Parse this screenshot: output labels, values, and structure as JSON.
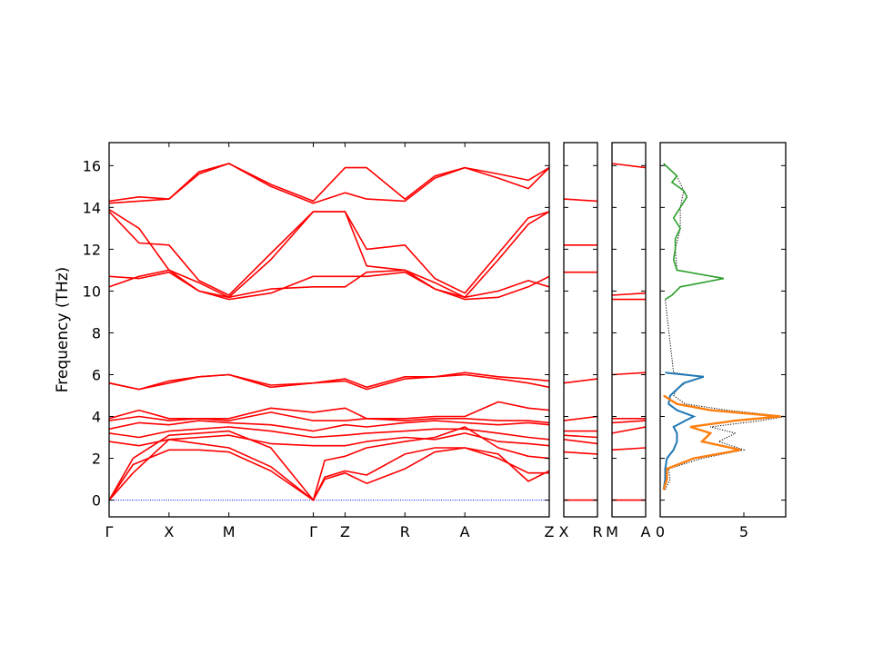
{
  "chart_data": {
    "type": "line",
    "ylabel": "Frequency (THz)",
    "ylim": [
      -0.8,
      17.1
    ],
    "yticks": [
      0,
      2,
      4,
      6,
      8,
      10,
      12,
      14,
      16
    ],
    "colors": {
      "bands": "#ff0000",
      "zero_line": "#0000ff",
      "dos_total": "#000000",
      "dos_blue": "#1f77b4",
      "dos_orange": "#ff7f0e",
      "dos_green": "#2ca02c"
    },
    "band_segments": [
      {
        "path": [
          "Γ",
          "X",
          "M",
          "Γ",
          "Z",
          "R",
          "A",
          "Z"
        ],
        "distance": [
          0,
          1,
          2,
          3.41,
          3.94,
          4.94,
          5.94,
          7.35
        ],
        "xlim": [
          0,
          7.35
        ],
        "bands": [
          {
            "name": "acoustic-1",
            "x": [
              0,
              0.4,
              1,
              1.5,
              2,
              2.7,
              3.41,
              3.6,
              3.94,
              4.3,
              4.94,
              5.44,
              5.94,
              6.5,
              7.0,
              7.35
            ],
            "y": [
              0,
              1.7,
              2.4,
              2.4,
              2.3,
              1.4,
              0,
              1.0,
              1.3,
              0.8,
              1.5,
              2.3,
              2.5,
              2.0,
              1.3,
              1.3
            ]
          },
          {
            "name": "acoustic-2",
            "x": [
              0,
              0.4,
              1,
              1.5,
              2,
              2.7,
              3.41,
              3.6,
              3.94,
              4.3,
              4.94,
              5.44,
              5.94,
              6.5,
              7.0,
              7.35
            ],
            "y": [
              0,
              1.3,
              2.9,
              2.7,
              2.5,
              1.6,
              0,
              1.1,
              1.4,
              1.2,
              2.2,
              2.5,
              2.5,
              2.2,
              0.9,
              1.4
            ]
          },
          {
            "name": "acoustic-3",
            "x": [
              0,
              0.4,
              1,
              1.5,
              2,
              2.7,
              3.41,
              3.6,
              3.94,
              4.3,
              4.94,
              5.44,
              5.94,
              6.5,
              7.0,
              7.35
            ],
            "y": [
              0,
              2.0,
              3.1,
              3.2,
              3.3,
              2.5,
              0,
              1.9,
              2.1,
              2.5,
              2.8,
              3.0,
              3.5,
              2.5,
              2.1,
              2.0
            ]
          },
          {
            "name": "optical-1",
            "x": [
              0,
              0.5,
              1,
              1.5,
              2,
              2.7,
              3.41,
              3.94,
              4.3,
              4.94,
              5.44,
              5.94,
              6.5,
              7.0,
              7.35
            ],
            "y": [
              2.8,
              2.6,
              2.9,
              3.0,
              3.1,
              2.7,
              2.6,
              2.6,
              2.8,
              3.0,
              2.9,
              3.2,
              2.8,
              2.7,
              2.6
            ]
          },
          {
            "name": "optical-2",
            "x": [
              0,
              0.5,
              1,
              1.5,
              2,
              2.7,
              3.41,
              3.94,
              4.3,
              4.94,
              5.44,
              5.94,
              6.5,
              7.0,
              7.35
            ],
            "y": [
              3.2,
              3.0,
              3.3,
              3.4,
              3.5,
              3.3,
              3.0,
              3.1,
              3.2,
              3.3,
              3.4,
              3.4,
              3.2,
              3.0,
              2.9
            ]
          },
          {
            "name": "optical-3",
            "x": [
              0,
              0.5,
              1,
              1.5,
              2,
              2.7,
              3.41,
              3.94,
              4.3,
              4.94,
              5.44,
              5.94,
              6.5,
              7.0,
              7.35
            ],
            "y": [
              3.4,
              3.7,
              3.6,
              3.8,
              3.7,
              3.6,
              3.3,
              3.6,
              3.5,
              3.7,
              3.8,
              3.7,
              3.6,
              3.7,
              3.6
            ]
          },
          {
            "name": "optical-4",
            "x": [
              0,
              0.5,
              1,
              1.5,
              2,
              2.7,
              3.41,
              3.94,
              4.3,
              4.94,
              5.44,
              5.94,
              6.5,
              7.0,
              7.35
            ],
            "y": [
              3.8,
              4.0,
              3.8,
              3.9,
              3.8,
              4.2,
              3.8,
              3.8,
              3.9,
              3.8,
              3.9,
              3.9,
              3.8,
              3.8,
              3.7
            ]
          },
          {
            "name": "optical-5",
            "x": [
              0,
              0.5,
              1,
              1.5,
              2,
              2.7,
              3.41,
              3.94,
              4.3,
              4.94,
              5.44,
              5.94,
              6.5,
              7.0,
              7.35
            ],
            "y": [
              3.9,
              4.3,
              3.9,
              3.9,
              3.9,
              4.4,
              4.2,
              4.4,
              3.9,
              3.9,
              4.0,
              4.0,
              4.7,
              4.4,
              4.3
            ]
          },
          {
            "name": "optical-6",
            "x": [
              0,
              0.5,
              1,
              1.5,
              2,
              2.7,
              3.41,
              3.94,
              4.3,
              4.94,
              5.44,
              5.94,
              6.5,
              7.0,
              7.35
            ],
            "y": [
              5.6,
              5.3,
              5.6,
              5.9,
              6.0,
              5.4,
              5.6,
              5.7,
              5.3,
              5.8,
              5.9,
              6.0,
              5.8,
              5.6,
              5.4
            ]
          },
          {
            "name": "optical-7",
            "x": [
              0,
              0.5,
              1,
              1.5,
              2,
              2.7,
              3.41,
              3.94,
              4.3,
              4.94,
              5.44,
              5.94,
              6.5,
              7.0,
              7.35
            ],
            "y": [
              5.6,
              5.3,
              5.7,
              5.9,
              6.0,
              5.5,
              5.6,
              5.8,
              5.4,
              5.9,
              5.9,
              6.1,
              5.9,
              5.8,
              5.7
            ]
          },
          {
            "name": "high-1",
            "x": [
              0,
              0.5,
              1,
              1.5,
              2,
              2.7,
              3.41,
              3.94,
              4.3,
              4.94,
              5.44,
              5.94,
              6.5,
              7.0,
              7.35
            ],
            "y": [
              10.2,
              10.7,
              11.0,
              10.4,
              9.7,
              10.1,
              10.2,
              10.2,
              10.9,
              11.0,
              10.4,
              9.7,
              10.0,
              10.5,
              10.2
            ]
          },
          {
            "name": "high-2",
            "x": [
              0,
              0.5,
              1,
              1.5,
              2,
              2.7,
              3.41,
              3.94,
              4.3,
              4.94,
              5.44,
              5.94,
              6.5,
              7.0,
              7.35
            ],
            "y": [
              10.7,
              10.6,
              10.9,
              10.0,
              9.6,
              9.9,
              10.7,
              10.7,
              10.7,
              10.9,
              10.1,
              9.6,
              9.7,
              10.2,
              10.7
            ]
          },
          {
            "name": "high-3",
            "x": [
              0,
              0.5,
              1,
              1.5,
              2,
              2.7,
              3.41,
              3.94,
              4.3,
              4.94,
              5.44,
              5.94,
              6.5,
              7.0,
              7.35
            ],
            "y": [
              13.8,
              12.3,
              12.2,
              10.5,
              9.8,
              11.8,
              13.8,
              13.8,
              12.0,
              12.2,
              10.6,
              9.9,
              11.8,
              13.5,
              13.8
            ]
          },
          {
            "name": "high-4",
            "x": [
              0,
              0.5,
              1,
              1.5,
              2,
              2.7,
              3.41,
              3.94,
              4.3,
              4.94,
              5.44,
              5.94,
              6.5,
              7.0,
              7.35
            ],
            "y": [
              13.9,
              13.0,
              11.0,
              10.0,
              9.7,
              11.5,
              13.8,
              13.8,
              11.2,
              11.0,
              10.1,
              9.7,
              11.5,
              13.2,
              13.8
            ]
          },
          {
            "name": "high-5",
            "x": [
              0,
              0.5,
              1,
              1.5,
              2,
              2.7,
              3.41,
              3.94,
              4.3,
              4.94,
              5.44,
              5.94,
              6.5,
              7.0,
              7.35
            ],
            "y": [
              14.2,
              14.3,
              14.4,
              15.6,
              16.1,
              15.0,
              14.2,
              14.7,
              14.4,
              14.3,
              15.4,
              15.9,
              15.4,
              14.9,
              15.9
            ]
          },
          {
            "name": "high-6",
            "x": [
              0,
              0.5,
              1,
              1.5,
              2,
              2.7,
              3.41,
              3.94,
              4.3,
              4.94,
              5.44,
              5.94,
              6.5,
              7.0,
              7.35
            ],
            "y": [
              14.3,
              14.5,
              14.4,
              15.7,
              16.1,
              15.1,
              14.3,
              15.9,
              15.9,
              14.4,
              15.5,
              15.9,
              15.6,
              15.3,
              15.9
            ]
          }
        ]
      },
      {
        "path": [
          "X",
          "R"
        ],
        "xlim": [
          0,
          1
        ],
        "bands": [
          {
            "name": "b1",
            "x": [
              0,
              1
            ],
            "y": [
              0,
              0
            ]
          },
          {
            "name": "b2",
            "x": [
              0,
              1
            ],
            "y": [
              2.3,
              2.2
            ]
          },
          {
            "name": "b3",
            "x": [
              0,
              1
            ],
            "y": [
              2.9,
              2.7
            ]
          },
          {
            "name": "b4",
            "x": [
              0,
              1
            ],
            "y": [
              3.1,
              3.0
            ]
          },
          {
            "name": "b5",
            "x": [
              0,
              1
            ],
            "y": [
              3.3,
              3.3
            ]
          },
          {
            "name": "b6",
            "x": [
              0,
              1
            ],
            "y": [
              3.8,
              4.0
            ]
          },
          {
            "name": "b7",
            "x": [
              0,
              1
            ],
            "y": [
              5.6,
              5.8
            ]
          },
          {
            "name": "b8",
            "x": [
              0,
              1
            ],
            "y": [
              10.9,
              10.9
            ]
          },
          {
            "name": "b9",
            "x": [
              0,
              1
            ],
            "y": [
              12.2,
              12.2
            ]
          },
          {
            "name": "b10",
            "x": [
              0,
              1
            ],
            "y": [
              14.4,
              14.3
            ]
          }
        ]
      },
      {
        "path": [
          "M",
          "A"
        ],
        "xlim": [
          0,
          1
        ],
        "bands": [
          {
            "name": "b1",
            "x": [
              0,
              1
            ],
            "y": [
              0,
              0
            ]
          },
          {
            "name": "b2",
            "x": [
              0,
              1
            ],
            "y": [
              2.4,
              2.5
            ]
          },
          {
            "name": "b3",
            "x": [
              0,
              1
            ],
            "y": [
              3.2,
              3.5
            ]
          },
          {
            "name": "b4",
            "x": [
              0,
              1
            ],
            "y": [
              3.7,
              3.8
            ]
          },
          {
            "name": "b5",
            "x": [
              0,
              1
            ],
            "y": [
              3.9,
              3.9
            ]
          },
          {
            "name": "b6",
            "x": [
              0,
              1
            ],
            "y": [
              6.0,
              6.1
            ]
          },
          {
            "name": "b7",
            "x": [
              0,
              1
            ],
            "y": [
              9.6,
              9.6
            ]
          },
          {
            "name": "b8",
            "x": [
              0,
              1
            ],
            "y": [
              9.8,
              9.9
            ]
          },
          {
            "name": "b9",
            "x": [
              0,
              1
            ],
            "y": [
              16.1,
              15.9
            ]
          }
        ]
      }
    ],
    "dos": {
      "xlim": [
        0,
        7.5
      ],
      "xticks": [
        0,
        5
      ],
      "series": [
        {
          "name": "total",
          "style": "dotted",
          "y": [
            0.5,
            1.0,
            1.5,
            2.0,
            2.4,
            2.8,
            3.2,
            3.5,
            3.8,
            4.0,
            4.3,
            4.6,
            5.0,
            5.3,
            5.6,
            5.9,
            6.1,
            9.6,
            9.8,
            10.2,
            10.6,
            11.0,
            12.0,
            13.0,
            14.0,
            14.8,
            15.5,
            16.1
          ],
          "x": [
            0.3,
            0.6,
            0.5,
            2.5,
            5.0,
            3.5,
            4.5,
            3.0,
            6.0,
            7.5,
            4.0,
            1.5,
            0.8,
            1.0,
            1.5,
            2.5,
            0.8,
            0.3,
            0.7,
            1.2,
            3.8,
            1.0,
            0.9,
            1.2,
            1.2,
            1.4,
            1.0,
            0.2
          ]
        },
        {
          "name": "series-blue",
          "y": [
            0.5,
            1.0,
            1.5,
            2.0,
            2.4,
            2.8,
            3.2,
            3.5,
            3.8,
            4.0,
            4.3,
            4.6,
            5.0,
            5.3,
            5.6,
            5.9,
            6.1
          ],
          "x": [
            0.2,
            0.3,
            0.3,
            0.4,
            0.8,
            1.0,
            1.0,
            0.8,
            1.5,
            2.0,
            1.0,
            0.5,
            0.6,
            1.0,
            1.4,
            2.6,
            0.3
          ]
        },
        {
          "name": "series-orange",
          "y": [
            0.5,
            1.0,
            1.5,
            2.0,
            2.4,
            2.8,
            3.2,
            3.5,
            3.8,
            4.0,
            4.3,
            4.6,
            5.0
          ],
          "x": [
            0.2,
            0.4,
            0.4,
            2.0,
            4.8,
            2.5,
            3.0,
            1.8,
            4.5,
            7.2,
            3.0,
            1.0,
            0.2
          ]
        },
        {
          "name": "series-green",
          "y": [
            9.6,
            9.8,
            10.2,
            10.6,
            11.0,
            11.5,
            12.0,
            12.5,
            13.0,
            13.5,
            14.0,
            14.5,
            14.8,
            15.2,
            15.5,
            16.1
          ],
          "x": [
            0.3,
            0.7,
            1.2,
            3.8,
            1.0,
            0.8,
            0.9,
            0.9,
            1.2,
            0.8,
            1.2,
            1.6,
            1.4,
            0.7,
            1.0,
            0.2
          ]
        }
      ]
    }
  }
}
